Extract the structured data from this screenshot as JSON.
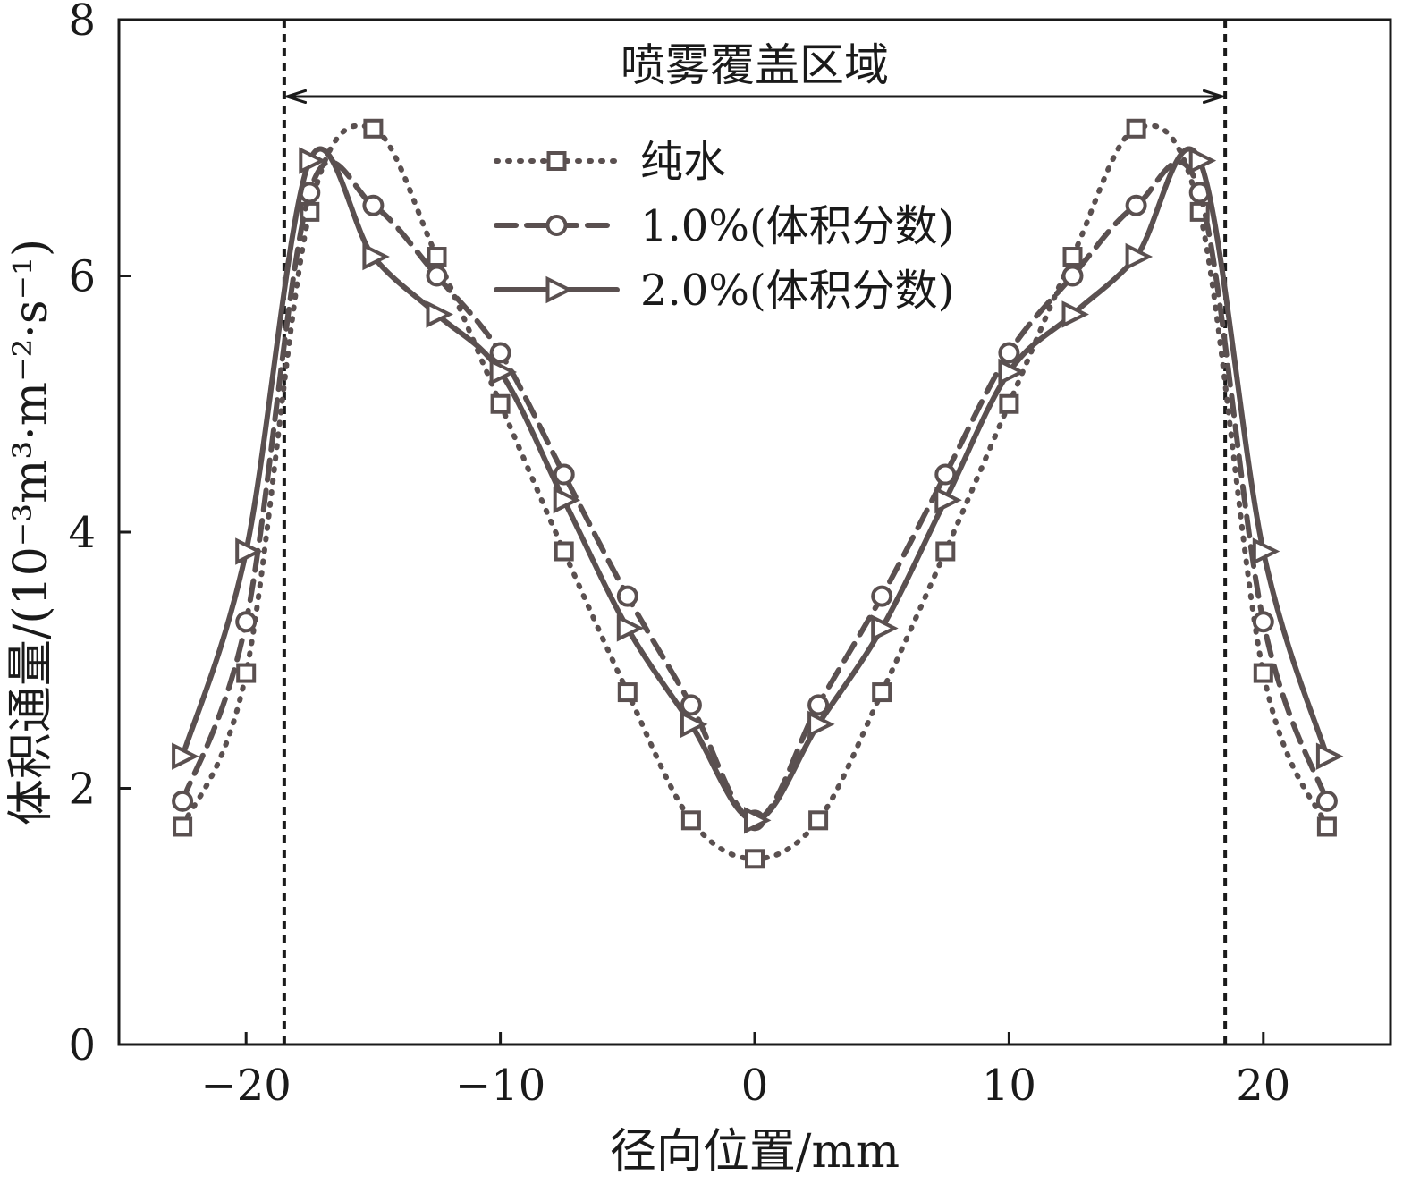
{
  "chart_data": {
    "type": "line",
    "title": "",
    "xlabel": "径向位置/mm",
    "ylabel": "体积通量/(10⁻³m³·m⁻²·s⁻¹)",
    "xlim": [
      -25,
      25
    ],
    "ylim": [
      0,
      8
    ],
    "xticks": [
      -20,
      -10,
      0,
      10,
      20
    ],
    "yticks": [
      0,
      2,
      4,
      6,
      8
    ],
    "xtick_labels": [
      "−20",
      "−10",
      "0",
      "10",
      "20"
    ],
    "ytick_labels": [
      "0",
      "2",
      "4",
      "6",
      "8"
    ],
    "grid": false,
    "legend_position": "top-center",
    "colors": {
      "series": "#5a5050",
      "axis": "#1a1a1a",
      "boundary": "#1a1a1a"
    },
    "annotation": {
      "text": "喷雾覆盖区域",
      "x_range": [
        -18.5,
        18.5
      ],
      "y": 7.4
    },
    "boundary_lines": [
      -18.5,
      18.5
    ],
    "series": [
      {
        "name": "纯水",
        "line_style": "dotted",
        "marker": "square",
        "x": [
          -22.5,
          -20,
          -17.5,
          -15,
          -12.5,
          -10,
          -7.5,
          -5,
          -2.5,
          0,
          2.5,
          5,
          7.5,
          10,
          12.5,
          15,
          17.5,
          20,
          22.5
        ],
        "y": [
          1.7,
          2.9,
          6.5,
          7.15,
          6.15,
          5.0,
          3.85,
          2.75,
          1.75,
          1.45,
          1.75,
          2.75,
          3.85,
          5.0,
          6.15,
          7.15,
          6.5,
          2.9,
          1.7
        ]
      },
      {
        "name": "1.0%(体积分数)",
        "line_style": "dashed",
        "marker": "circle",
        "x": [
          -22.5,
          -20,
          -17.5,
          -15,
          -12.5,
          -10,
          -7.5,
          -5,
          -2.5,
          0,
          2.5,
          5,
          7.5,
          10,
          12.5,
          15,
          17.5,
          20,
          22.5
        ],
        "y": [
          1.9,
          3.3,
          6.65,
          6.55,
          6.0,
          5.4,
          4.45,
          3.5,
          2.65,
          1.75,
          2.65,
          3.5,
          4.45,
          5.4,
          6.0,
          6.55,
          6.65,
          3.3,
          1.9
        ]
      },
      {
        "name": "2.0%(体积分数)",
        "line_style": "solid",
        "marker": "triangle-right",
        "x": [
          -22.5,
          -20,
          -17.5,
          -15,
          -12.5,
          -10,
          -7.5,
          -5,
          -2.5,
          0,
          2.5,
          5,
          7.5,
          10,
          12.5,
          15,
          17.5,
          20,
          22.5
        ],
        "y": [
          2.25,
          3.85,
          6.9,
          6.15,
          5.7,
          5.25,
          4.25,
          3.25,
          2.5,
          1.75,
          2.5,
          3.25,
          4.25,
          5.25,
          5.7,
          6.15,
          6.9,
          3.85,
          2.25
        ]
      }
    ]
  }
}
